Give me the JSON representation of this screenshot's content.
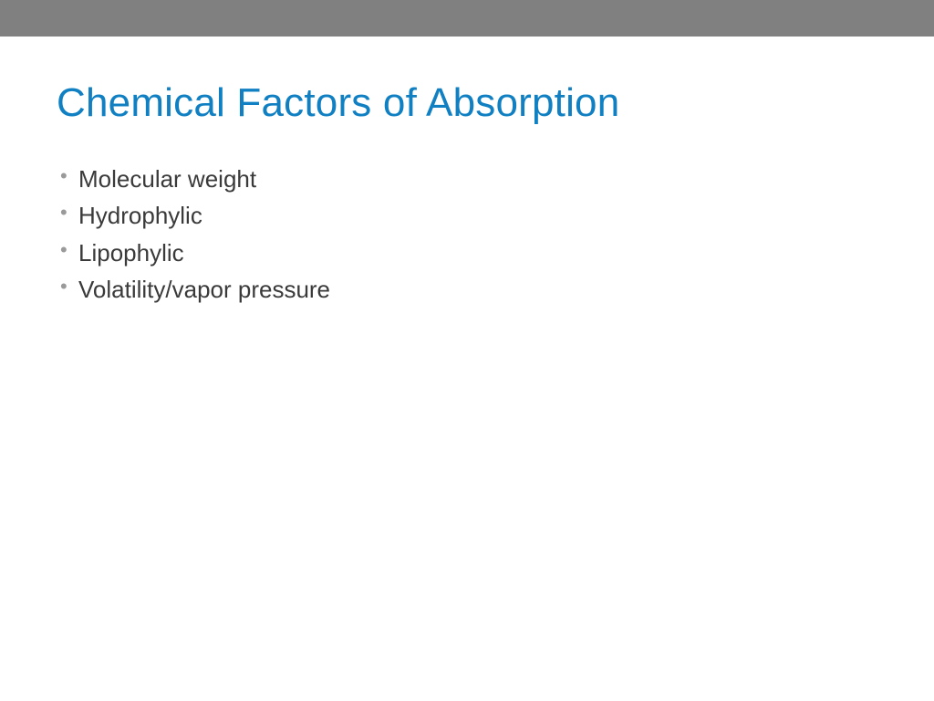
{
  "slide": {
    "title": "Chemical Factors of Absorption",
    "bullets": [
      "Molecular weight",
      "Hydrophylic",
      "Lipophylic",
      "Volatility/vapor pressure"
    ]
  },
  "styles": {
    "topbar_color": "#808080",
    "topbar_height": 40,
    "title_color": "#1080c3",
    "title_fontsize": 44,
    "body_text_color": "#3a3a3a",
    "body_fontsize": 26,
    "bullet_marker_color": "#9a9a9a",
    "background_color": "#ffffff"
  }
}
